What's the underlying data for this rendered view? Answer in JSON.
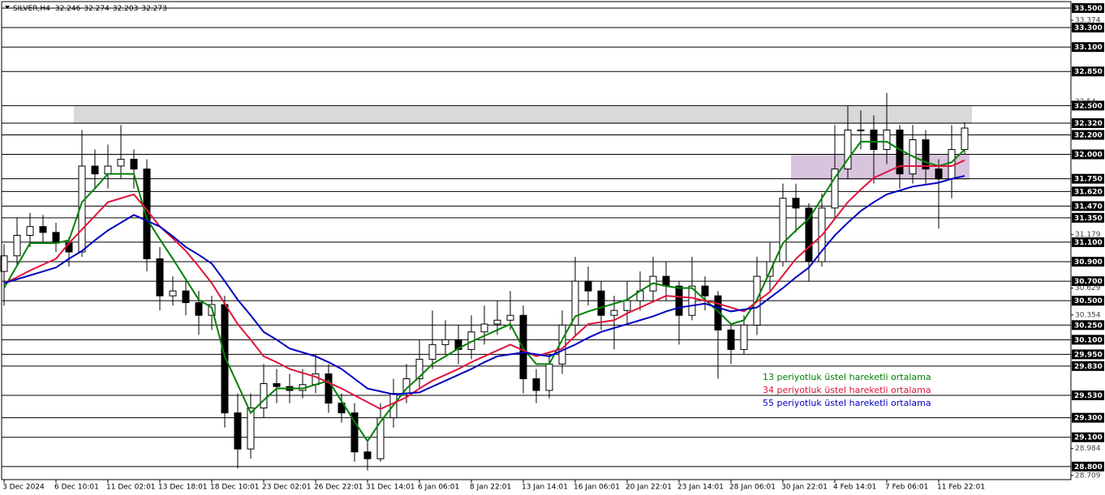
{
  "chart_data": {
    "type": "candlestick",
    "symbol": "SILVER,H4",
    "header_ohlc": [
      32.246,
      32.274,
      32.203,
      32.273
    ],
    "categories": [
      "3 Dec 2024",
      null,
      null,
      null,
      "6 Dec 10:01",
      null,
      null,
      null,
      "11 Dec 02:01",
      null,
      null,
      null,
      "13 Dec 18:01",
      null,
      null,
      null,
      "18 Dec 10:01",
      null,
      null,
      null,
      "23 Dec 02:01",
      null,
      null,
      null,
      "26 Dec 22:01",
      null,
      null,
      null,
      "31 Dec 14:01",
      null,
      null,
      null,
      "6 Jan 06:01",
      null,
      null,
      null,
      "8 Jan 22:01",
      null,
      null,
      null,
      "13 Jan 14:01",
      null,
      null,
      null,
      "16 Jan 06:01",
      null,
      null,
      null,
      "20 Jan 22:01",
      null,
      null,
      null,
      "23 Jan 14:01",
      null,
      null,
      null,
      "28 Jan 06:01",
      null,
      null,
      null,
      "30 Jan 22:01",
      null,
      null,
      null,
      "4 Feb 14:01",
      null,
      null,
      null,
      "7 Feb 06:01",
      null,
      null,
      null,
      "11 Feb 22:01",
      null,
      null
    ],
    "open": [
      30.8,
      30.96,
      31.17,
      31.26,
      31.2,
      31.09,
      31.0,
      31.88,
      31.8,
      31.88,
      31.95,
      31.85,
      30.93,
      30.55,
      30.6,
      30.48,
      30.35,
      30.46,
      29.35,
      28.98,
      29.4,
      29.65,
      29.62,
      29.58,
      29.64,
      29.75,
      29.45,
      29.35,
      28.95,
      28.88,
      29.3,
      29.55,
      29.7,
      29.9,
      30.05,
      30.1,
      30.0,
      30.18,
      30.26,
      30.3,
      30.35,
      29.7,
      29.58,
      29.85,
      30.25,
      30.7,
      30.6,
      30.35,
      30.4,
      30.5,
      30.6,
      30.75,
      30.65,
      30.35,
      30.65,
      30.55,
      30.2,
      30.0,
      30.25,
      30.75,
      30.9,
      31.55,
      31.45,
      30.9,
      31.45,
      31.85,
      32.25,
      32.25,
      32.05,
      32.25,
      31.8,
      32.15,
      31.85,
      31.75,
      32.05
    ],
    "high": [
      31.08,
      31.35,
      31.4,
      31.38,
      31.3,
      31.15,
      32.25,
      32.05,
      32.1,
      32.3,
      32.05,
      31.95,
      31.05,
      30.75,
      30.7,
      30.6,
      30.55,
      30.55,
      29.55,
      29.55,
      29.85,
      29.8,
      29.75,
      29.8,
      29.95,
      29.85,
      29.55,
      29.45,
      29.05,
      29.45,
      29.7,
      29.85,
      30.1,
      30.4,
      30.3,
      30.25,
      30.35,
      30.45,
      30.5,
      30.6,
      30.45,
      29.8,
      29.95,
      30.4,
      30.95,
      30.85,
      30.7,
      30.55,
      30.7,
      30.8,
      30.95,
      30.9,
      30.7,
      30.95,
      30.75,
      30.6,
      30.25,
      30.35,
      30.95,
      31.1,
      31.7,
      31.7,
      31.5,
      31.6,
      32.3,
      32.5,
      32.45,
      32.4,
      32.63,
      32.3,
      32.3,
      32.25,
      31.95,
      32.3,
      32.33
    ],
    "low": [
      30.45,
      30.85,
      31.05,
      31.1,
      31.0,
      30.85,
      30.95,
      31.65,
      31.65,
      31.75,
      31.65,
      30.8,
      30.4,
      30.45,
      30.35,
      30.15,
      30.2,
      29.2,
      28.78,
      28.88,
      29.3,
      29.45,
      29.45,
      29.5,
      29.55,
      29.35,
      29.25,
      28.85,
      28.76,
      28.85,
      29.2,
      29.45,
      29.6,
      29.8,
      29.95,
      29.85,
      29.9,
      30.05,
      30.15,
      30.2,
      29.55,
      29.45,
      29.5,
      29.75,
      30.15,
      30.45,
      30.2,
      30.0,
      30.25,
      30.4,
      30.5,
      30.5,
      30.05,
      30.3,
      30.4,
      29.7,
      29.85,
      29.95,
      30.15,
      30.6,
      30.85,
      31.2,
      30.7,
      30.85,
      31.35,
      31.75,
      32.05,
      31.7,
      31.9,
      31.65,
      31.7,
      31.7,
      31.24,
      31.55,
      32.0
    ],
    "close": [
      30.96,
      31.17,
      31.26,
      31.2,
      31.09,
      31.0,
      31.88,
      31.8,
      31.88,
      31.95,
      31.85,
      30.93,
      30.55,
      30.6,
      30.48,
      30.35,
      30.46,
      29.35,
      28.98,
      29.4,
      29.65,
      29.62,
      29.58,
      29.64,
      29.75,
      29.45,
      29.35,
      28.95,
      28.88,
      29.3,
      29.55,
      29.7,
      29.9,
      30.05,
      30.1,
      30.0,
      30.18,
      30.26,
      30.3,
      30.35,
      29.7,
      29.58,
      29.85,
      30.25,
      30.7,
      30.6,
      30.35,
      30.4,
      30.5,
      30.6,
      30.75,
      30.65,
      30.35,
      30.65,
      30.55,
      30.2,
      30.0,
      30.25,
      30.75,
      30.9,
      31.55,
      31.45,
      30.9,
      31.45,
      31.85,
      32.25,
      32.25,
      32.05,
      32.25,
      31.8,
      32.15,
      31.85,
      31.75,
      32.05,
      32.27
    ],
    "series": [
      {
        "name": "13 periyotluk üstel hareketli ortalama",
        "color": "#008000",
        "values": [
          30.63,
          30.86,
          31.09,
          31.09,
          31.09,
          31.12,
          31.51,
          31.65,
          31.8,
          31.8,
          31.8,
          31.34,
          31.13,
          30.93,
          30.72,
          30.51,
          30.43,
          29.93,
          29.64,
          29.35,
          29.48,
          29.6,
          29.6,
          29.6,
          29.64,
          29.68,
          29.47,
          29.26,
          29.06,
          29.26,
          29.43,
          29.6,
          29.72,
          29.85,
          29.93,
          30.01,
          30.08,
          30.14,
          30.2,
          30.26,
          30.01,
          29.85,
          29.85,
          30.1,
          30.34,
          30.39,
          30.43,
          30.47,
          30.51,
          30.6,
          30.68,
          30.65,
          30.63,
          30.63,
          30.51,
          30.39,
          30.26,
          30.3,
          30.51,
          30.8,
          31.09,
          31.22,
          31.34,
          31.55,
          31.76,
          31.95,
          32.13,
          32.13,
          32.13,
          32.05,
          31.98,
          31.92,
          31.88,
          31.92,
          32.05
        ]
      },
      {
        "name": "34 periyotluk üstel hareketli ortalama",
        "color": "#e0143c",
        "values": [
          30.68,
          30.74,
          30.81,
          30.87,
          30.93,
          31.09,
          31.23,
          31.37,
          31.51,
          31.55,
          31.59,
          31.43,
          31.26,
          31.14,
          31.01,
          30.85,
          30.68,
          30.47,
          30.26,
          30.1,
          29.93,
          29.87,
          29.8,
          29.76,
          29.72,
          29.66,
          29.6,
          29.53,
          29.46,
          29.39,
          29.45,
          29.51,
          29.6,
          29.68,
          29.74,
          29.8,
          29.87,
          29.93,
          29.99,
          30.05,
          29.99,
          29.93,
          29.97,
          30.01,
          30.14,
          30.26,
          30.28,
          30.3,
          30.37,
          30.43,
          30.49,
          30.55,
          30.54,
          30.53,
          30.5,
          30.47,
          30.43,
          30.39,
          30.49,
          30.59,
          30.76,
          30.93,
          31.05,
          31.17,
          31.34,
          31.51,
          31.64,
          31.76,
          31.82,
          31.88,
          31.88,
          31.88,
          31.88,
          31.88,
          31.94
        ]
      },
      {
        "name": "55 periyotluk üstel hareketli ortalama",
        "color": "#0000c0",
        "values": [
          30.68,
          30.72,
          30.76,
          30.8,
          30.84,
          30.93,
          31.01,
          31.12,
          31.22,
          31.3,
          31.38,
          31.32,
          31.26,
          31.16,
          31.05,
          30.97,
          30.88,
          30.7,
          30.51,
          30.35,
          30.18,
          30.1,
          30.01,
          29.97,
          29.93,
          29.87,
          29.8,
          29.7,
          29.6,
          29.57,
          29.54,
          29.55,
          29.56,
          29.62,
          29.68,
          29.74,
          29.8,
          29.87,
          29.93,
          29.95,
          29.97,
          29.95,
          29.93,
          29.99,
          30.05,
          30.12,
          30.18,
          30.22,
          30.26,
          30.3,
          30.34,
          30.39,
          30.43,
          30.45,
          30.47,
          30.43,
          30.39,
          30.41,
          30.43,
          30.53,
          30.63,
          30.74,
          30.84,
          31.01,
          31.17,
          31.3,
          31.42,
          31.51,
          31.59,
          31.63,
          31.67,
          31.69,
          31.71,
          31.75,
          31.78
        ]
      }
    ],
    "zones": [
      {
        "low": 32.312,
        "high": 32.495,
        "color": "#d9d9d9"
      },
      {
        "low": 31.739,
        "high": 31.997,
        "color": "#d8c4dc"
      }
    ],
    "ylim": [
      28.666,
      33.566
    ],
    "levels": [
      {
        "value": 33.5,
        "label": "33.500"
      },
      {
        "value": 33.3,
        "label": "33.300"
      },
      {
        "value": 33.1,
        "label": "33.100"
      },
      {
        "value": 32.85,
        "label": "32.850"
      },
      {
        "value": 32.5,
        "label": "32.500"
      },
      {
        "value": 32.32,
        "label": "32.320"
      },
      {
        "value": 32.2,
        "label": "32.200"
      },
      {
        "value": 32.0,
        "label": "32.000"
      },
      {
        "value": 31.75,
        "label": "31.750"
      },
      {
        "value": 31.62,
        "label": "31.620"
      },
      {
        "value": 31.47,
        "label": "31.470"
      },
      {
        "value": 31.35,
        "label": "31.350"
      },
      {
        "value": 31.1,
        "label": "31.100"
      },
      {
        "value": 30.9,
        "label": "30.900"
      },
      {
        "value": 30.7,
        "label": "30.700"
      },
      {
        "value": 30.5,
        "label": "30.500"
      },
      {
        "value": 30.25,
        "label": "30.250"
      },
      {
        "value": 30.1,
        "label": "30.100"
      },
      {
        "value": 29.95,
        "label": "29.950"
      },
      {
        "value": 29.83,
        "label": "29.830"
      },
      {
        "value": 29.53,
        "label": "29.530"
      },
      {
        "value": 29.3,
        "label": "29.300"
      },
      {
        "value": 29.1,
        "label": "29.100"
      },
      {
        "value": 28.8,
        "label": "28.800"
      }
    ],
    "yticks": [
      33.374,
      32.54,
      31.179,
      30.629,
      30.354,
      28.984,
      28.709
    ],
    "candle_up_color": "#ffffff",
    "candle_down_color": "#000000",
    "grid": false
  }
}
